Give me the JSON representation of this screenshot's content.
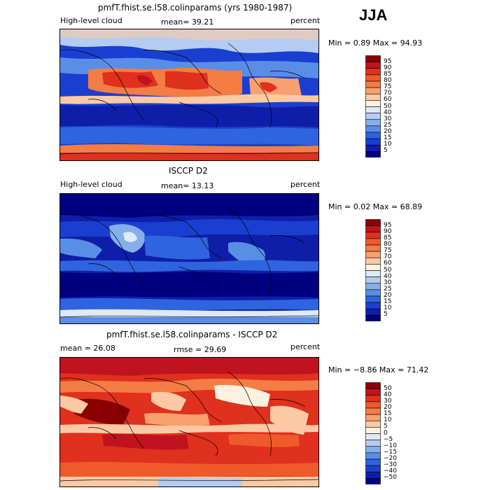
{
  "season": "JJA",
  "panels": [
    {
      "title": "pmfT.fhist.se.l58.colinparams (yrs 1980-1987)",
      "left_label": "High-level cloud",
      "center_label": "mean=  39.21",
      "right_label": "percent",
      "minmax": "Min =    0.89  Max =   94.93",
      "colorbar": {
        "labels": [
          "95",
          "90",
          "85",
          "80",
          "75",
          "70",
          "60",
          "50",
          "40",
          "30",
          "25",
          "20",
          "15",
          "10",
          "5"
        ],
        "colors": [
          "#8b0000",
          "#c1121f",
          "#e0301e",
          "#ef5a2b",
          "#f47c45",
          "#f9a070",
          "#fcc9a4",
          "#fff0e0",
          "#dfe9f7",
          "#b3ccf0",
          "#86aeea",
          "#5a8ee6",
          "#2e64df",
          "#1a3fd0",
          "#0f1ea8",
          "#000080"
        ]
      }
    },
    {
      "title": "ISCCP D2",
      "left_label": "High-level cloud",
      "center_label": "mean=  13.13",
      "right_label": "percent",
      "minmax": "Min =    0.02  Max =   68.89",
      "colorbar": {
        "labels": [
          "95",
          "90",
          "85",
          "80",
          "75",
          "70",
          "60",
          "50",
          "40",
          "30",
          "25",
          "20",
          "15",
          "10",
          "5"
        ],
        "colors": [
          "#8b0000",
          "#c1121f",
          "#e0301e",
          "#ef5a2b",
          "#f47c45",
          "#f9a070",
          "#fcc9a4",
          "#fff0e0",
          "#dfe9f7",
          "#b3ccf0",
          "#86aeea",
          "#5a8ee6",
          "#2e64df",
          "#1a3fd0",
          "#0f1ea8",
          "#000080"
        ]
      }
    },
    {
      "title": "pmfT.fhist.se.l58.colinparams - ISCCP D2",
      "left_label": "mean =   26.08",
      "center_label": "rmse =   29.69",
      "right_label": "percent",
      "minmax": "Min =  −8.86  Max =   71.42",
      "colorbar": {
        "labels": [
          "50",
          "40",
          "30",
          "20",
          "15",
          "10",
          "5",
          "0",
          "−5",
          "−10",
          "−15",
          "−20",
          "−30",
          "−40",
          "−50"
        ],
        "colors": [
          "#8b0000",
          "#c1121f",
          "#e0301e",
          "#ef5a2b",
          "#f47c45",
          "#f9a070",
          "#fcc9a4",
          "#fff0e0",
          "#dfe9f7",
          "#b3ccf0",
          "#86aeea",
          "#5a8ee6",
          "#2e64df",
          "#1a3fd0",
          "#0f1ea8",
          "#000080"
        ]
      }
    }
  ]
}
